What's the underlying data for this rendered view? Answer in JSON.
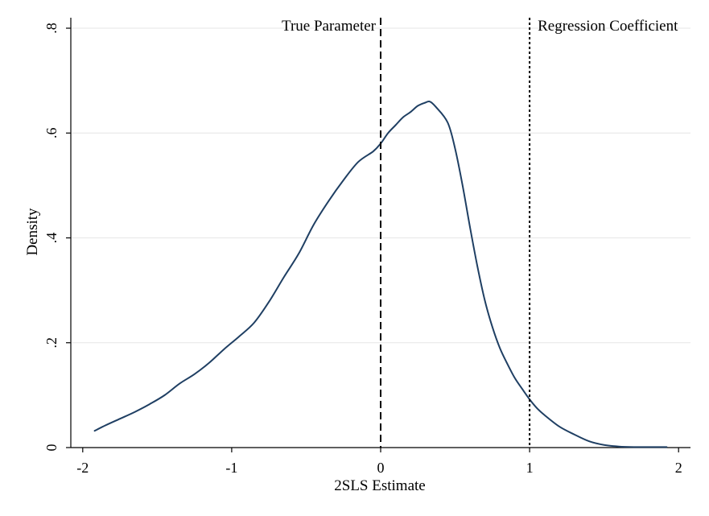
{
  "chart_data": {
    "type": "line",
    "title": "",
    "xlabel": "2SLS Estimate",
    "ylabel": "Density",
    "xlim": [
      -2.08,
      2.08
    ],
    "ylim": [
      0,
      0.82
    ],
    "x_ticks": [
      -2,
      -1,
      0,
      1,
      2
    ],
    "x_tick_labels": [
      "-2",
      "-1",
      "0",
      "1",
      "2"
    ],
    "y_ticks": [
      0,
      0.2,
      0.4,
      0.6,
      0.8
    ],
    "y_tick_labels": [
      "0",
      ".2",
      ".4",
      ".6",
      ".8"
    ],
    "grid": "horizontal",
    "series": [
      {
        "color": "#1f3f63",
        "x": [
          -1.92,
          -1.85,
          -1.75,
          -1.65,
          -1.55,
          -1.45,
          -1.35,
          -1.25,
          -1.15,
          -1.05,
          -0.95,
          -0.85,
          -0.75,
          -0.65,
          -0.55,
          -0.45,
          -0.35,
          -0.25,
          -0.15,
          -0.05,
          0.0,
          0.05,
          0.1,
          0.15,
          0.2,
          0.25,
          0.3,
          0.33,
          0.37,
          0.45,
          0.5,
          0.55,
          0.6,
          0.65,
          0.7,
          0.75,
          0.8,
          0.85,
          0.9,
          0.95,
          1.0,
          1.05,
          1.1,
          1.2,
          1.3,
          1.4,
          1.5,
          1.6,
          1.7,
          1.8,
          1.92
        ],
        "y": [
          0.032,
          0.042,
          0.055,
          0.068,
          0.083,
          0.1,
          0.122,
          0.14,
          0.162,
          0.188,
          0.212,
          0.238,
          0.278,
          0.325,
          0.37,
          0.425,
          0.47,
          0.51,
          0.545,
          0.565,
          0.58,
          0.6,
          0.615,
          0.63,
          0.64,
          0.652,
          0.658,
          0.66,
          0.65,
          0.62,
          0.57,
          0.5,
          0.42,
          0.345,
          0.28,
          0.23,
          0.19,
          0.16,
          0.133,
          0.112,
          0.092,
          0.075,
          0.062,
          0.04,
          0.025,
          0.012,
          0.005,
          0.002,
          0.001,
          0.001,
          0.001
        ]
      }
    ],
    "reference_lines": [
      {
        "x": 0,
        "style": "dashed",
        "label": "True Parameter"
      },
      {
        "x": 1,
        "style": "dotted",
        "label": "Regression Coefficient"
      }
    ]
  }
}
